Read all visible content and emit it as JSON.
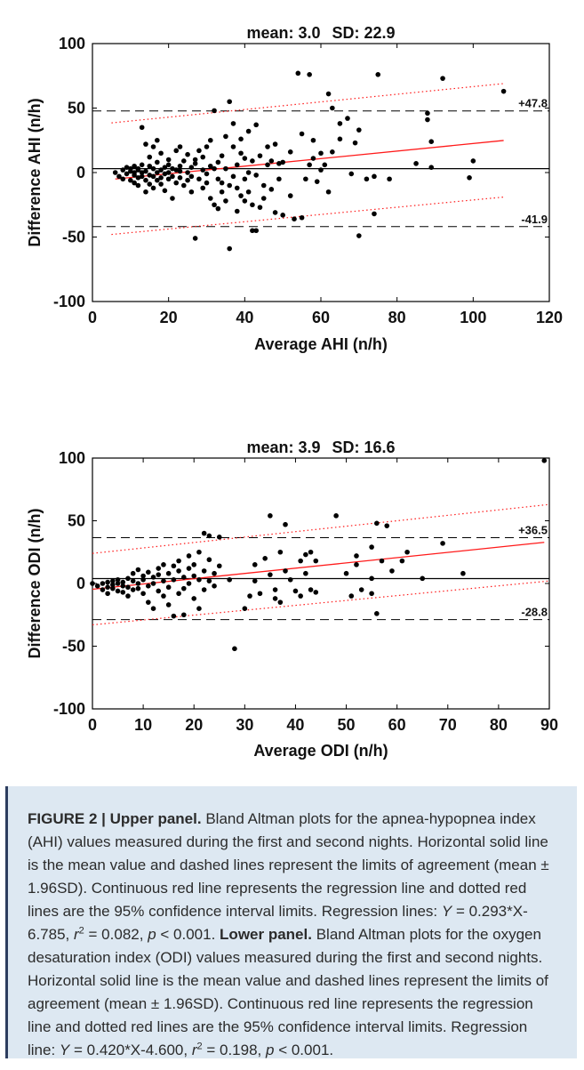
{
  "chart_data": [
    {
      "type": "scatter",
      "title_mean": "mean: 3.0",
      "title_sd": "SD: 22.9",
      "xlabel": "Average AHI (n/h)",
      "ylabel": "Difference AHI (n/h)",
      "xlim": [
        0,
        120
      ],
      "ylim": [
        -100,
        100
      ],
      "xticks": [
        "0",
        "20",
        "40",
        "60",
        "80",
        "100",
        "120"
      ],
      "yticks": [
        "-100",
        "-50",
        "0",
        "50",
        "100"
      ],
      "mean_line": 3.0,
      "upper_loa": 47.8,
      "lower_loa": -41.9,
      "upper_loa_label": "+47.8",
      "lower_loa_label": "-41.9",
      "regression": {
        "slope": 0.293,
        "intercept": -6.785
      },
      "ci_upper": [
        [
          5,
          38.5
        ],
        [
          108,
          69
        ]
      ],
      "ci_lower": [
        [
          5,
          -48
        ],
        [
          108,
          -19
        ]
      ],
      "points": [
        [
          6,
          0
        ],
        [
          7,
          -3
        ],
        [
          8,
          2
        ],
        [
          8,
          -5
        ],
        [
          9,
          4
        ],
        [
          9,
          -1
        ],
        [
          10,
          1
        ],
        [
          10,
          -6
        ],
        [
          10,
          3
        ],
        [
          11,
          0
        ],
        [
          11,
          -2
        ],
        [
          11,
          5
        ],
        [
          11,
          -8
        ],
        [
          12,
          2
        ],
        [
          12,
          -4
        ],
        [
          12,
          3
        ],
        [
          12,
          -10
        ],
        [
          13,
          0
        ],
        [
          13,
          6
        ],
        [
          13,
          -3
        ],
        [
          13,
          35
        ],
        [
          14,
          22
        ],
        [
          14,
          1
        ],
        [
          14,
          -6
        ],
        [
          14,
          -15
        ],
        [
          15,
          5
        ],
        [
          15,
          -2
        ],
        [
          15,
          12
        ],
        [
          15,
          -9
        ],
        [
          16,
          3
        ],
        [
          16,
          -3
        ],
        [
          16,
          20
        ],
        [
          16,
          -12
        ],
        [
          17,
          0
        ],
        [
          17,
          8
        ],
        [
          17,
          -6
        ],
        [
          17,
          25
        ],
        [
          18,
          2
        ],
        [
          18,
          -4
        ],
        [
          18,
          15
        ],
        [
          18,
          -9
        ],
        [
          19,
          4
        ],
        [
          19,
          -1
        ],
        [
          19,
          -14
        ],
        [
          20,
          6
        ],
        [
          20,
          0
        ],
        [
          20,
          -5
        ],
        [
          20,
          10
        ],
        [
          21,
          -3
        ],
        [
          21,
          3
        ],
        [
          21,
          -20
        ],
        [
          22,
          2
        ],
        [
          22,
          -8
        ],
        [
          22,
          17
        ],
        [
          23,
          -4
        ],
        [
          23,
          5
        ],
        [
          23,
          1
        ],
        [
          23,
          20
        ],
        [
          24,
          -10
        ],
        [
          24,
          9
        ],
        [
          25,
          0
        ],
        [
          25,
          -6
        ],
        [
          25,
          14
        ],
        [
          26,
          4
        ],
        [
          26,
          -15
        ],
        [
          26,
          -3
        ],
        [
          27,
          10
        ],
        [
          27,
          -51
        ],
        [
          27,
          7
        ],
        [
          28,
          -5
        ],
        [
          28,
          17
        ],
        [
          29,
          2
        ],
        [
          29,
          -12
        ],
        [
          29,
          12
        ],
        [
          30,
          20
        ],
        [
          30,
          -8
        ],
        [
          30,
          -1
        ],
        [
          31,
          5
        ],
        [
          31,
          -20
        ],
        [
          31,
          25
        ],
        [
          32,
          48
        ],
        [
          32,
          -25
        ],
        [
          32,
          3
        ],
        [
          33,
          -5
        ],
        [
          33,
          -28
        ],
        [
          33,
          8
        ],
        [
          34,
          13
        ],
        [
          34,
          -15
        ],
        [
          34,
          -8
        ],
        [
          35,
          -22
        ],
        [
          35,
          3
        ],
        [
          35,
          28
        ],
        [
          36,
          -10
        ],
        [
          36,
          -59
        ],
        [
          36,
          55
        ],
        [
          37,
          -3
        ],
        [
          37,
          38
        ],
        [
          37,
          20
        ],
        [
          38,
          -12
        ],
        [
          38,
          -30
        ],
        [
          38,
          6
        ],
        [
          39,
          15
        ],
        [
          39,
          -18
        ],
        [
          39,
          26
        ],
        [
          40,
          -5
        ],
        [
          40,
          -22
        ],
        [
          40,
          11
        ],
        [
          41,
          0
        ],
        [
          41,
          -15
        ],
        [
          41,
          32
        ],
        [
          42,
          -45
        ],
        [
          42,
          9
        ],
        [
          42,
          -25
        ],
        [
          43,
          -45
        ],
        [
          43,
          -2
        ],
        [
          43,
          37
        ],
        [
          44,
          -27
        ],
        [
          44,
          13
        ],
        [
          45,
          -10
        ],
        [
          45,
          -20
        ],
        [
          46,
          20
        ],
        [
          46,
          6
        ],
        [
          47,
          -13
        ],
        [
          47,
          9
        ],
        [
          48,
          -31
        ],
        [
          48,
          22
        ],
        [
          49,
          -5
        ],
        [
          49,
          7
        ],
        [
          50,
          8
        ],
        [
          50,
          -33
        ],
        [
          52,
          -18
        ],
        [
          52,
          16
        ],
        [
          53,
          -36
        ],
        [
          54,
          77
        ],
        [
          55,
          -35
        ],
        [
          55,
          30
        ],
        [
          56,
          -5
        ],
        [
          57,
          76
        ],
        [
          57,
          6
        ],
        [
          58,
          25
        ],
        [
          58,
          11
        ],
        [
          59,
          -7
        ],
        [
          60,
          15
        ],
        [
          60,
          2
        ],
        [
          61,
          6
        ],
        [
          62,
          61
        ],
        [
          62,
          -15
        ],
        [
          63,
          50
        ],
        [
          63,
          16
        ],
        [
          65,
          26
        ],
        [
          65,
          38
        ],
        [
          67,
          42
        ],
        [
          68,
          -1
        ],
        [
          69,
          23
        ],
        [
          70,
          -49
        ],
        [
          70,
          33
        ],
        [
          72,
          -5
        ],
        [
          74,
          -3
        ],
        [
          74,
          -32
        ],
        [
          75,
          76
        ],
        [
          78,
          -5
        ],
        [
          85,
          7
        ],
        [
          88,
          46
        ],
        [
          88,
          41
        ],
        [
          89,
          4
        ],
        [
          89,
          24
        ],
        [
          92,
          73
        ],
        [
          99,
          -4
        ],
        [
          100,
          9
        ],
        [
          108,
          63
        ]
      ]
    },
    {
      "type": "scatter",
      "title_mean": "mean: 3.9",
      "title_sd": "SD: 16.6",
      "xlabel": "Average ODI (n/h)",
      "ylabel": "Difference ODI (n/h)",
      "xlim": [
        0,
        90
      ],
      "ylim": [
        -100,
        100
      ],
      "xticks": [
        "0",
        "10",
        "20",
        "30",
        "40",
        "50",
        "60",
        "70",
        "80",
        "90"
      ],
      "yticks": [
        "-100",
        "-50",
        "0",
        "50",
        "100"
      ],
      "mean_line": 3.9,
      "upper_loa": 36.5,
      "lower_loa": -28.8,
      "upper_loa_label": "+36.5",
      "lower_loa_label": "-28.8",
      "regression": {
        "slope": 0.42,
        "intercept": -4.6
      },
      "ci_upper": [
        [
          0,
          24
        ],
        [
          90,
          63
        ]
      ],
      "ci_lower": [
        [
          0,
          -33
        ],
        [
          90,
          2
        ]
      ],
      "points": [
        [
          0,
          0
        ],
        [
          1,
          -2
        ],
        [
          2,
          0
        ],
        [
          2,
          -5
        ],
        [
          3,
          1
        ],
        [
          3,
          -3
        ],
        [
          3,
          -8
        ],
        [
          4,
          2
        ],
        [
          4,
          -1
        ],
        [
          4,
          -4
        ],
        [
          5,
          0
        ],
        [
          5,
          -6
        ],
        [
          5,
          3
        ],
        [
          6,
          -2
        ],
        [
          6,
          1
        ],
        [
          6,
          -7
        ],
        [
          7,
          4
        ],
        [
          7,
          -3
        ],
        [
          7,
          -10
        ],
        [
          8,
          2
        ],
        [
          8,
          -5
        ],
        [
          8,
          8
        ],
        [
          9,
          0
        ],
        [
          9,
          -4
        ],
        [
          9,
          11
        ],
        [
          10,
          3
        ],
        [
          10,
          -8
        ],
        [
          10,
          6
        ],
        [
          11,
          -2
        ],
        [
          11,
          9
        ],
        [
          11,
          -15
        ],
        [
          12,
          5
        ],
        [
          12,
          0
        ],
        [
          12,
          -20
        ],
        [
          13,
          7
        ],
        [
          13,
          -6
        ],
        [
          13,
          12
        ],
        [
          14,
          2
        ],
        [
          14,
          -10
        ],
        [
          14,
          15
        ],
        [
          15,
          8
        ],
        [
          15,
          -3
        ],
        [
          15,
          -17
        ],
        [
          16,
          14
        ],
        [
          16,
          3
        ],
        [
          16,
          -26
        ],
        [
          17,
          10
        ],
        [
          17,
          -8
        ],
        [
          17,
          18
        ],
        [
          18,
          5
        ],
        [
          18,
          -4
        ],
        [
          18,
          -25
        ],
        [
          19,
          12
        ],
        [
          19,
          0
        ],
        [
          19,
          22
        ],
        [
          20,
          6
        ],
        [
          20,
          -12
        ],
        [
          20,
          15
        ],
        [
          21,
          3
        ],
        [
          21,
          -20
        ],
        [
          21,
          25
        ],
        [
          22,
          40
        ],
        [
          22,
          10
        ],
        [
          22,
          -5
        ],
        [
          23,
          38
        ],
        [
          23,
          19
        ],
        [
          23,
          2
        ],
        [
          24,
          8
        ],
        [
          24,
          -2
        ],
        [
          25,
          37
        ],
        [
          25,
          14
        ],
        [
          27,
          3
        ],
        [
          28,
          -52
        ],
        [
          30,
          -20
        ],
        [
          31,
          -10
        ],
        [
          32,
          15
        ],
        [
          32,
          2
        ],
        [
          33,
          -8
        ],
        [
          34,
          20
        ],
        [
          35,
          54
        ],
        [
          35,
          7
        ],
        [
          36,
          -5
        ],
        [
          36,
          -12
        ],
        [
          37,
          25
        ],
        [
          37,
          -15
        ],
        [
          38,
          47
        ],
        [
          38,
          10
        ],
        [
          39,
          3
        ],
        [
          40,
          -6
        ],
        [
          41,
          18
        ],
        [
          41,
          -10
        ],
        [
          42,
          23
        ],
        [
          42,
          8
        ],
        [
          43,
          -5
        ],
        [
          43,
          25
        ],
        [
          44,
          -7
        ],
        [
          44,
          18
        ],
        [
          48,
          54
        ],
        [
          50,
          8
        ],
        [
          51,
          -10
        ],
        [
          52,
          22
        ],
        [
          52,
          15
        ],
        [
          53,
          -5
        ],
        [
          55,
          4
        ],
        [
          55,
          -8
        ],
        [
          55,
          29
        ],
        [
          56,
          48
        ],
        [
          56,
          -24
        ],
        [
          57,
          18
        ],
        [
          58,
          46
        ],
        [
          59,
          10
        ],
        [
          61,
          18
        ],
        [
          62,
          25
        ],
        [
          65,
          4
        ],
        [
          69,
          32
        ],
        [
          73,
          8
        ],
        [
          89,
          98
        ]
      ]
    }
  ],
  "caption": {
    "figure_label": "FIGURE 2 |",
    "upper_heading": "Upper panel.",
    "upper_text_1": "Bland Altman plots for the apnea-hypopnea index (AHI) values measured during the first and second nights. Horizontal solid line is the mean value and dashed lines represent the limits of agreement (mean ± 1.96SD). Continuous red line represents the regression line and dotted red lines are the 95% confidence interval limits. Regression lines:",
    "upper_Y": "Y",
    "upper_eq": "= 0.293*X-6.785,",
    "upper_r": "r",
    "upper_exp": "2",
    "upper_r2": "= 0.082,",
    "upper_p": "p",
    "upper_pval": "< 0.001.",
    "lower_heading": "Lower panel.",
    "lower_text_1": "Bland Altman plots for the oxygen desaturation index (ODI) values measured during the first and second nights. Horizontal solid line is the mean value and dashed lines represent the limits of agreement (mean ± 1.96SD). Continuous red line represents the regression line and dotted red lines are the 95% confidence interval limits. Regression line:",
    "lower_Y": "Y",
    "lower_eq": "= 0.420*X-4.600,",
    "lower_r": "r",
    "lower_exp": "2",
    "lower_r2": "= 0.198,",
    "lower_p": "p",
    "lower_pval": "< 0.001."
  },
  "colors": {
    "regression": "#ff1a1a",
    "points": "#000000",
    "caption_bg": "#dde8f2",
    "caption_border": "#2d3d5f"
  }
}
